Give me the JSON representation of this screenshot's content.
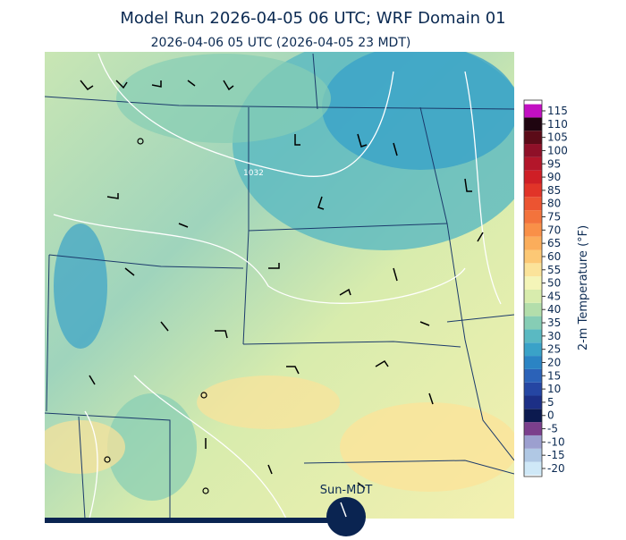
{
  "header": {
    "title": "Model Run 2026-04-05 06 UTC; WRF Domain 01",
    "subtitle": "2026-04-06 05 UTC  (2026-04-05 23 MDT)"
  },
  "map": {
    "contour_label": "1032",
    "timeline_label": "Sun-MDT"
  },
  "colorbar": {
    "label": "2-m Temperature (°F)",
    "ticks": [
      -20,
      -15,
      -10,
      -5,
      0,
      5,
      10,
      15,
      20,
      25,
      30,
      35,
      40,
      45,
      50,
      55,
      60,
      65,
      70,
      75,
      80,
      85,
      90,
      95,
      100,
      105,
      110,
      115
    ],
    "colors": [
      "#cfe8f7",
      "#b0c8e4",
      "#9c9fcf",
      "#7b3f8c",
      "#0c1a4f",
      "#1c2f86",
      "#2546a3",
      "#2b62b8",
      "#2b84c4",
      "#3aa2c8",
      "#5ab9c2",
      "#86cdb5",
      "#b3deab",
      "#d8ecad",
      "#f4f5b8",
      "#fbe39a",
      "#fcc875",
      "#fbad5b",
      "#f99048",
      "#f3733c",
      "#ec5431",
      "#e13428",
      "#cf1f26",
      "#b3162a",
      "#8f1028",
      "#5b0b18",
      "#1f0510",
      "#c20fc2"
    ]
  }
}
